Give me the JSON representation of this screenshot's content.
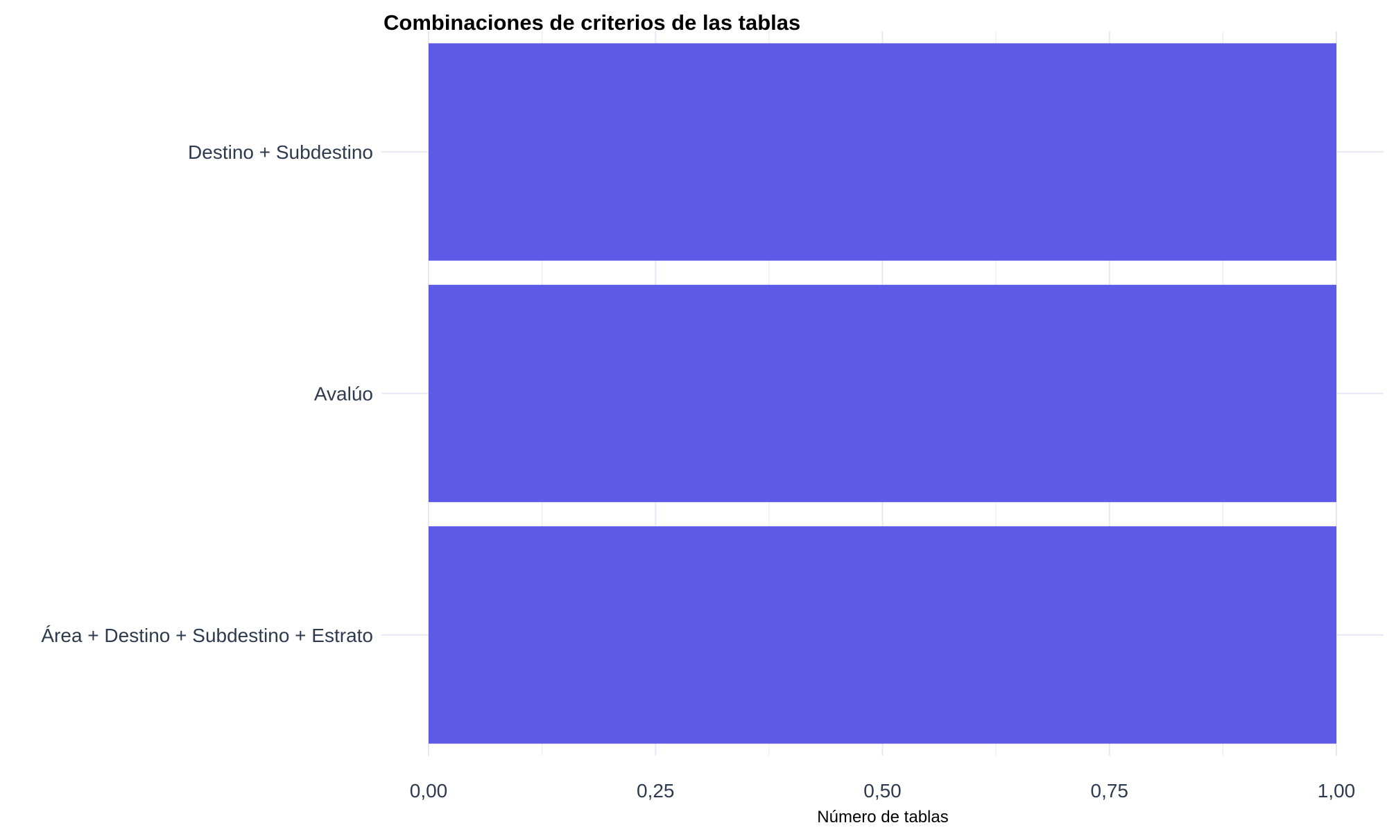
{
  "chart_data": {
    "type": "bar",
    "orientation": "horizontal",
    "title": "Combinaciones de criterios de las tablas",
    "xlabel": "Número de tablas",
    "ylabel": "",
    "categories": [
      "Destino + Subdestino",
      "Avalúo",
      "Área + Destino + Subdestino + Estrato"
    ],
    "values": [
      1,
      1,
      1
    ],
    "xlim": [
      0,
      1
    ],
    "x_ticks": [
      0,
      0.25,
      0.5,
      0.75,
      1
    ],
    "x_tick_labels": [
      "0,00",
      "0,25",
      "0,50",
      "0,75",
      "1,00"
    ],
    "grid": true,
    "legend": "none",
    "colors": {
      "bar": "#5E5AE8",
      "grid": "#E6E8F5",
      "tick_label": "#2E3A4E",
      "title": "#000000"
    }
  }
}
